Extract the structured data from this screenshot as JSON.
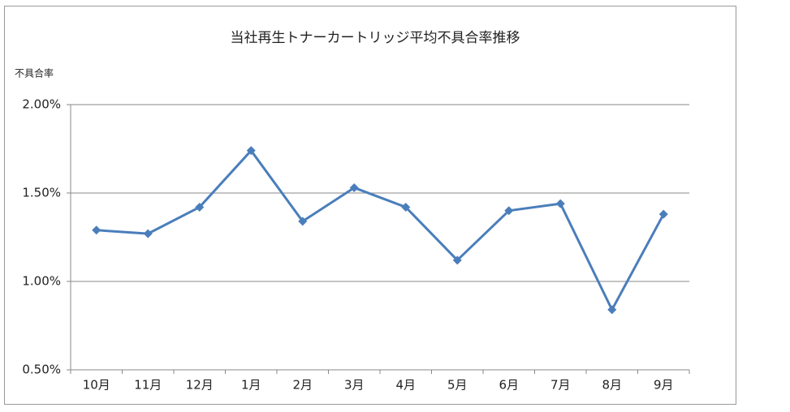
{
  "chart_data": {
    "type": "line",
    "title": "当社再生トナーカートリッジ平均不具合率推移",
    "y_label": "不具合率",
    "categories": [
      "10月",
      "11月",
      "12月",
      "1月",
      "2月",
      "3月",
      "4月",
      "5月",
      "6月",
      "7月",
      "8月",
      "9月"
    ],
    "series": [
      {
        "name": "不具合率",
        "color": "#4a7ebb",
        "values": [
          1.29,
          1.27,
          1.42,
          1.74,
          1.34,
          1.53,
          1.42,
          1.12,
          1.4,
          1.44,
          0.84,
          1.38
        ]
      }
    ],
    "ylim": [
      0.5,
      2.0
    ],
    "yticks": [
      {
        "value": 0.5,
        "label": "0.50%"
      },
      {
        "value": 1.0,
        "label": "1.00%"
      },
      {
        "value": 1.5,
        "label": "1.50%"
      },
      {
        "value": 2.0,
        "label": "2.00%"
      }
    ],
    "grid": true
  }
}
